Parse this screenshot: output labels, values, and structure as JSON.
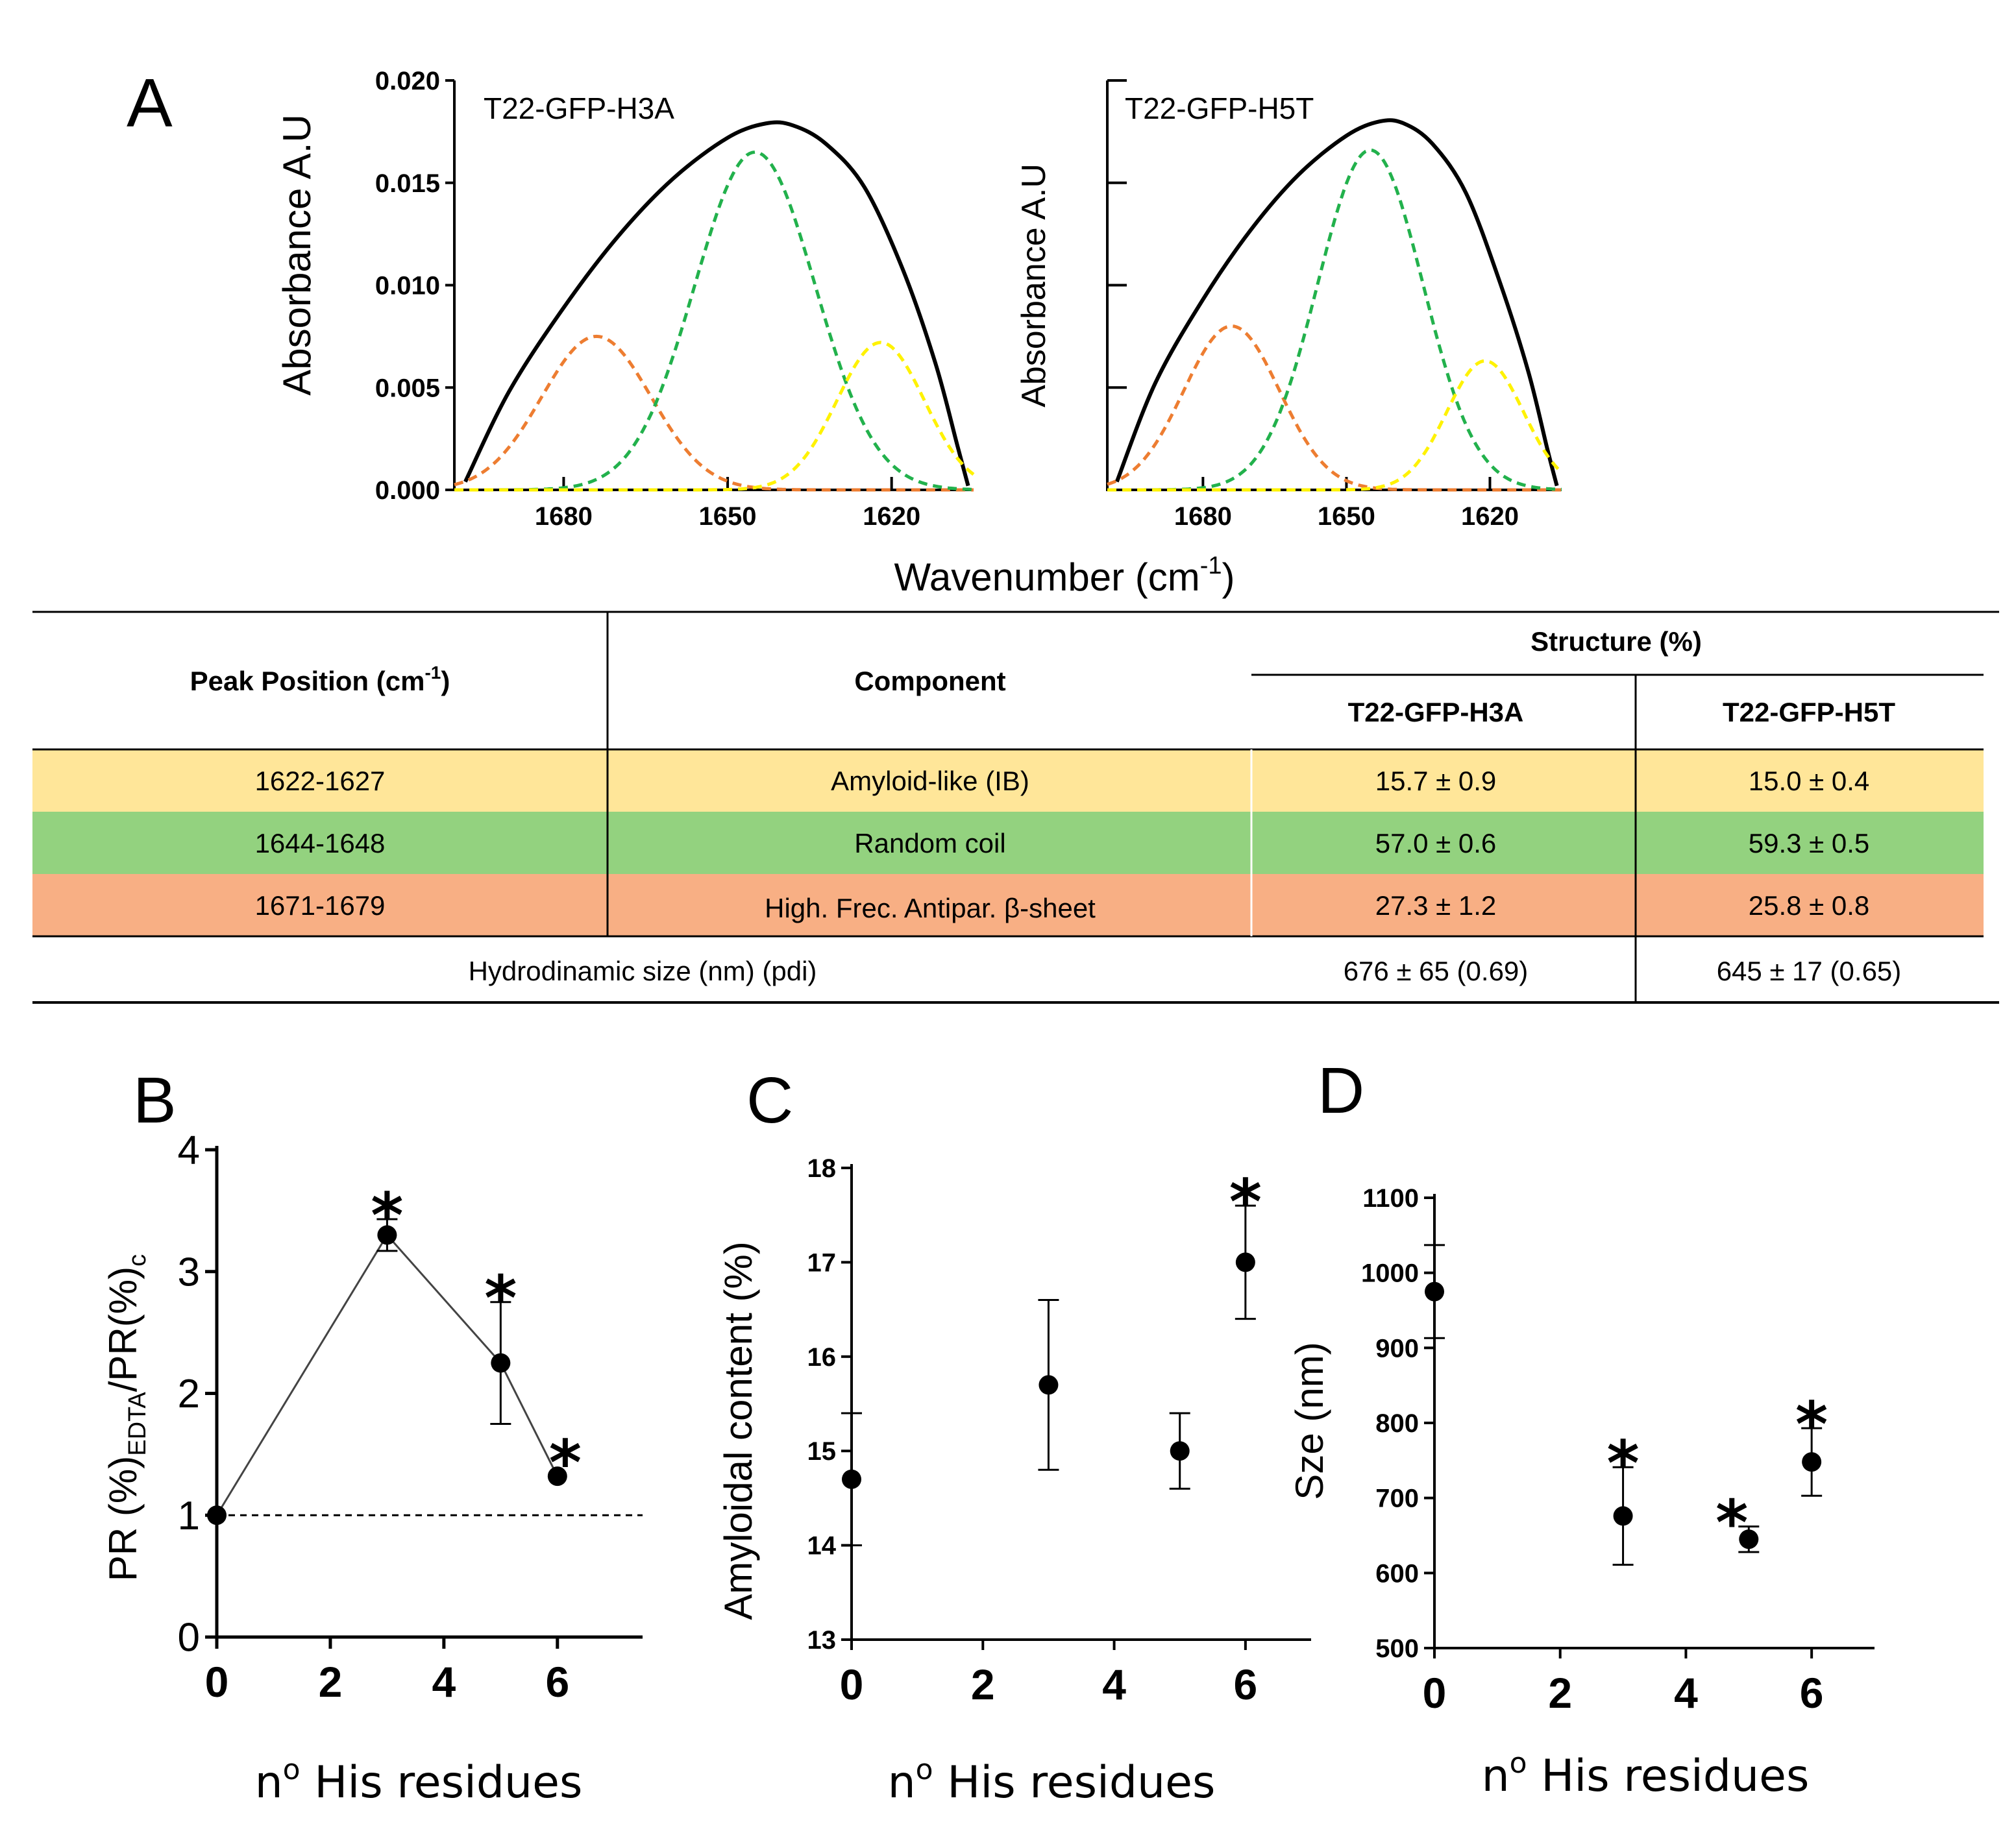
{
  "panel_labels": {
    "a": "A",
    "b": "B",
    "c": "C",
    "d": "D"
  },
  "colors": {
    "black": "#000000",
    "orange": "#ED7D31",
    "green": "#22B14C",
    "yellow": "#FFF200",
    "row_yellow": "#FFE699",
    "row_green": "#93D27F",
    "row_orange": "#F8AF84"
  },
  "chart_data": [
    {
      "id": "A1",
      "type": "line",
      "title": "T22-GFP-H3A",
      "xlabel": "Wavenumber (cm-1)",
      "ylabel": "Absorbance A.U",
      "xlim": [
        1700,
        1605
      ],
      "ylim": [
        0,
        0.02
      ],
      "x_ticks": [
        1680,
        1650,
        1620
      ],
      "x_tick_labels": [
        "1680",
        "1650",
        "1620"
      ],
      "y_ticks": [
        0,
        0.005,
        0.01,
        0.015,
        0.02
      ],
      "y_tick_labels": [
        "0.000",
        "0.005",
        "0.010",
        "0.015",
        "0.020"
      ],
      "series": [
        {
          "name": "total",
          "style": "solid",
          "color": "#000000",
          "x": [
            1698,
            1690,
            1680,
            1670,
            1660,
            1650,
            1643,
            1638,
            1632,
            1625,
            1618,
            1612,
            1608,
            1606
          ],
          "y": [
            0.0004,
            0.0048,
            0.0089,
            0.0124,
            0.0152,
            0.0172,
            0.0179,
            0.0178,
            0.0169,
            0.0148,
            0.0108,
            0.0062,
            0.0022,
            0.0002
          ]
        },
        {
          "name": "High freq. antiparallel beta-sheet",
          "style": "dashed",
          "color": "#ED7D31",
          "peak": 1674,
          "height": 0.0075,
          "sigma": 10
        },
        {
          "name": "Random coil",
          "style": "dashed",
          "color": "#22B14C",
          "peak": 1645,
          "height": 0.0165,
          "sigma": 11
        },
        {
          "name": "Amyloid-like (IB)",
          "style": "dashed",
          "color": "#FFF200",
          "peak": 1622,
          "height": 0.0072,
          "sigma": 8
        }
      ]
    },
    {
      "id": "A2",
      "type": "line",
      "title": "T22-GFP-H5T",
      "xlabel": "Wavenumber (cm-1)",
      "ylabel": "Absorbance A.U",
      "xlim": [
        1700,
        1605
      ],
      "ylim": [
        0,
        0.02
      ],
      "x_ticks": [
        1680,
        1650,
        1620
      ],
      "x_tick_labels": [
        "1680",
        "1650",
        "1620"
      ],
      "series": [
        {
          "name": "total",
          "style": "solid",
          "color": "#000000",
          "x": [
            1698,
            1690,
            1680,
            1670,
            1660,
            1650,
            1643,
            1638,
            1632,
            1625,
            1618,
            1612,
            1608,
            1606
          ],
          "y": [
            0.0004,
            0.0052,
            0.0093,
            0.0127,
            0.0154,
            0.0173,
            0.018,
            0.0179,
            0.0169,
            0.0145,
            0.0102,
            0.0058,
            0.002,
            0.0002
          ]
        },
        {
          "name": "High freq. antiparallel beta-sheet",
          "style": "dashed",
          "color": "#ED7D31",
          "peak": 1674,
          "height": 0.008,
          "sigma": 10
        },
        {
          "name": "Random coil",
          "style": "dashed",
          "color": "#22B14C",
          "peak": 1645,
          "height": 0.0166,
          "sigma": 11
        },
        {
          "name": "Amyloid-like (IB)",
          "style": "dashed",
          "color": "#FFF200",
          "peak": 1621,
          "height": 0.0063,
          "sigma": 8
        }
      ]
    },
    {
      "id": "B",
      "type": "scatter",
      "connected": true,
      "xlabel": "nº His residues",
      "ylabel": "PR (%)EDTA/PR(%)c",
      "xlim": [
        0,
        7.5
      ],
      "ylim": [
        0,
        4
      ],
      "x_ticks": [
        0,
        2,
        4,
        6
      ],
      "y_ticks": [
        0,
        1,
        2,
        3,
        4
      ],
      "x": [
        0,
        3,
        5,
        6
      ],
      "y": [
        1.0,
        3.3,
        2.25,
        1.32
      ],
      "err": [
        0.0,
        0.13,
        0.5,
        0.0
      ],
      "significant": [
        false,
        true,
        true,
        true
      ],
      "reference_line": 1
    },
    {
      "id": "C",
      "type": "scatter",
      "xlabel": "nº His residues",
      "ylabel": "Amyloidal content (%)",
      "xlim": [
        0,
        7
      ],
      "ylim": [
        13,
        18
      ],
      "x_ticks": [
        0,
        2,
        4,
        6
      ],
      "y_ticks": [
        13,
        14,
        15,
        16,
        17,
        18
      ],
      "x": [
        0,
        3,
        5,
        6
      ],
      "y": [
        14.7,
        15.7,
        15.0,
        17.0
      ],
      "err": [
        0.7,
        0.9,
        0.4,
        0.6
      ],
      "significant": [
        false,
        false,
        false,
        true
      ]
    },
    {
      "id": "D",
      "type": "scatter",
      "xlabel": "nº His residues",
      "ylabel": "Sze (nm)",
      "xlim": [
        0,
        7
      ],
      "ylim": [
        500,
        1100
      ],
      "x_ticks": [
        0,
        2,
        4,
        6
      ],
      "y_ticks": [
        500,
        600,
        700,
        800,
        900,
        1000,
        1100
      ],
      "x": [
        0,
        3,
        5,
        6
      ],
      "y": [
        975,
        676,
        645,
        748
      ],
      "err": [
        62,
        65,
        17,
        45
      ],
      "significant": [
        false,
        true,
        true,
        true
      ]
    }
  ],
  "table": {
    "col_peak": "Peak Position (cm-1)",
    "col_component": "Component",
    "col_structure": "Structure (%)",
    "col_h3a": "T22-GFP-H3A",
    "col_h5t": "T22-GFP-H5T",
    "rows": [
      {
        "peak": "1622-1627",
        "component": "Amyloid-like (IB)",
        "h3a": "15.7 ± 0.9",
        "h5t": "15.0 ± 0.4"
      },
      {
        "peak": "1644-1648",
        "component": "Random coil",
        "h3a": "57.0 ± 0.6",
        "h5t": "59.3 ± 0.5"
      },
      {
        "peak": "1671-1679",
        "component": "High. Frec. Antipar. β-sheet",
        "h3a": "27.3 ± 1.2",
        "h5t": "25.8 ± 0.8"
      }
    ],
    "size_label": "Hydrodinamic size (nm) (pdi)",
    "size_h3a": "676 ± 65 (0.69)",
    "size_h5t": "645 ± 17 (0.65)"
  },
  "labels": {
    "wavenumber_prefix": "Wavenumber (cm",
    "wavenumber_sup": "-1",
    "wavenumber_suffix": ")",
    "cm_sup": "-1",
    "peak_prefix": "Peak Position (cm",
    "peak_suffix": ")",
    "b_ylabel_a": "PR (%)",
    "b_ylabel_sub_a": "EDTA",
    "b_ylabel_b": "/PR(%)",
    "b_ylabel_sub_b": "c",
    "his_prefix": "n",
    "his_sup": "o",
    "his_suffix": " His residues",
    "asterisk": "*"
  }
}
